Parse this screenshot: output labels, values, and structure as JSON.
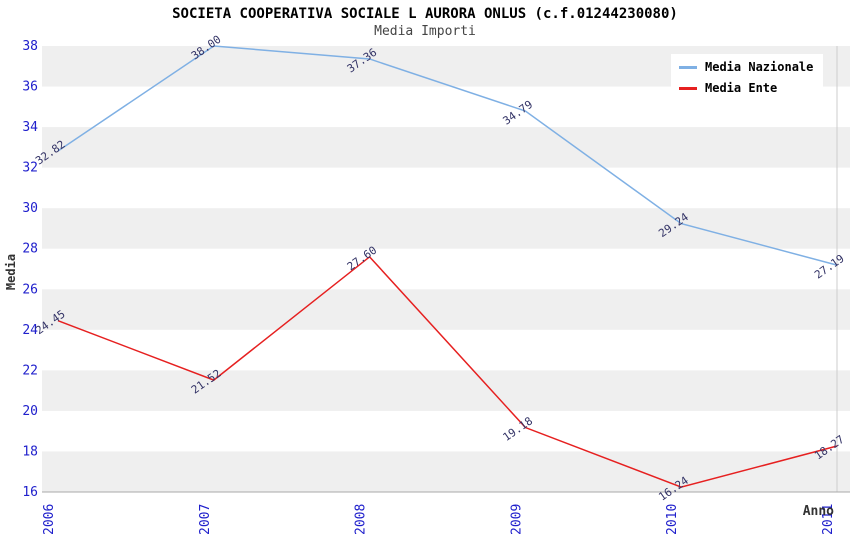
{
  "title": "SOCIETA COOPERATIVA SOCIALE L AURORA ONLUS (c.f.01244230080)",
  "subtitle": "Media Importi",
  "axes": {
    "y_title": "Media",
    "x_title": "Anno"
  },
  "legend": [
    {
      "label": "Media Nazionale",
      "color": "#7fb0e4"
    },
    {
      "label": "Media Ente",
      "color": "#e62020"
    }
  ],
  "colors": {
    "tick_label": "#2020cc",
    "data_label": "#333366",
    "band_gray": "#efefef",
    "axis_line": "#aaaaaa",
    "grid_line": "#cccccc",
    "background": "#ffffff"
  },
  "chart_data": {
    "type": "line",
    "title": "SOCIETA COOPERATIVA SOCIALE L AURORA ONLUS (c.f.01244230080)",
    "subtitle": "Media Importi",
    "xlabel": "Anno",
    "ylabel": "Media",
    "x": [
      "2006",
      "2007",
      "2008",
      "2009",
      "2010",
      "2011"
    ],
    "series": [
      {
        "name": "Media Nazionale",
        "color": "#7fb0e4",
        "values": [
          32.82,
          38.0,
          37.36,
          34.79,
          29.24,
          27.19
        ]
      },
      {
        "name": "Media Ente",
        "color": "#e62020",
        "values": [
          24.45,
          21.52,
          27.6,
          19.18,
          16.24,
          18.27
        ]
      }
    ],
    "ylim": [
      16,
      38
    ],
    "y_tick_step": 2,
    "y_ticks": [
      16,
      18,
      20,
      22,
      24,
      26,
      28,
      30,
      32,
      34,
      36,
      38
    ],
    "banded_background": true,
    "point_labels": true,
    "legend_position": "top-right"
  }
}
